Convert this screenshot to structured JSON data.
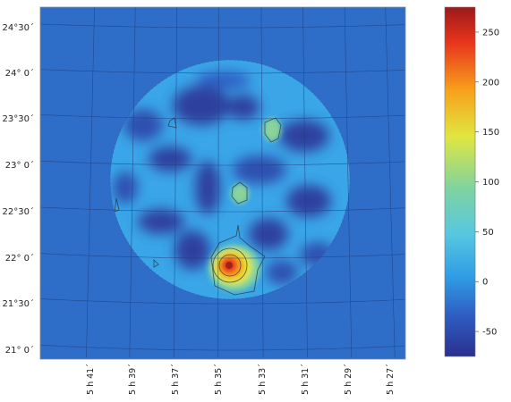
{
  "chart_data": {
    "type": "heatmap",
    "title": "",
    "xlabel": "",
    "ylabel": "",
    "x_tick_labels": [
      "5 h 41´",
      "5 h 39´",
      "5 h 37´",
      "5 h 35´",
      "5 h 33´",
      "5 h 31´",
      "5 h 29´",
      "5 h 27´"
    ],
    "y_tick_labels": [
      "24°30´",
      "24° 0´",
      "23°30´",
      "23° 0´",
      "22°30´",
      "22° 0´",
      "21°30´",
      "21° 0´"
    ],
    "colorbar": {
      "min": -75,
      "max": 275,
      "ticks": [
        250,
        200,
        150,
        100,
        50,
        0,
        -50
      ],
      "colormap": [
        "#2b2f8f",
        "#2f5fc4",
        "#2f9ee6",
        "#57c7e0",
        "#7fd3a0",
        "#e0e640",
        "#f7a21c",
        "#e8341c",
        "#9b1a1a"
      ]
    },
    "background_value": 12,
    "field_of_view": {
      "center_ra_label": "5 h 34´",
      "center_dec_label": "22° 45´",
      "shape": "circle"
    },
    "sources": [
      {
        "name": "peak",
        "ra_h": 5.575,
        "dec_deg": 22.02,
        "value": 272
      },
      {
        "name": "blob",
        "ra_h": 5.5583,
        "dec_deg": 23.55,
        "value": 95
      },
      {
        "name": "blob",
        "ra_h": 5.565,
        "dec_deg": 22.6,
        "value": 90
      }
    ],
    "grid": true,
    "legend_position": "right"
  }
}
